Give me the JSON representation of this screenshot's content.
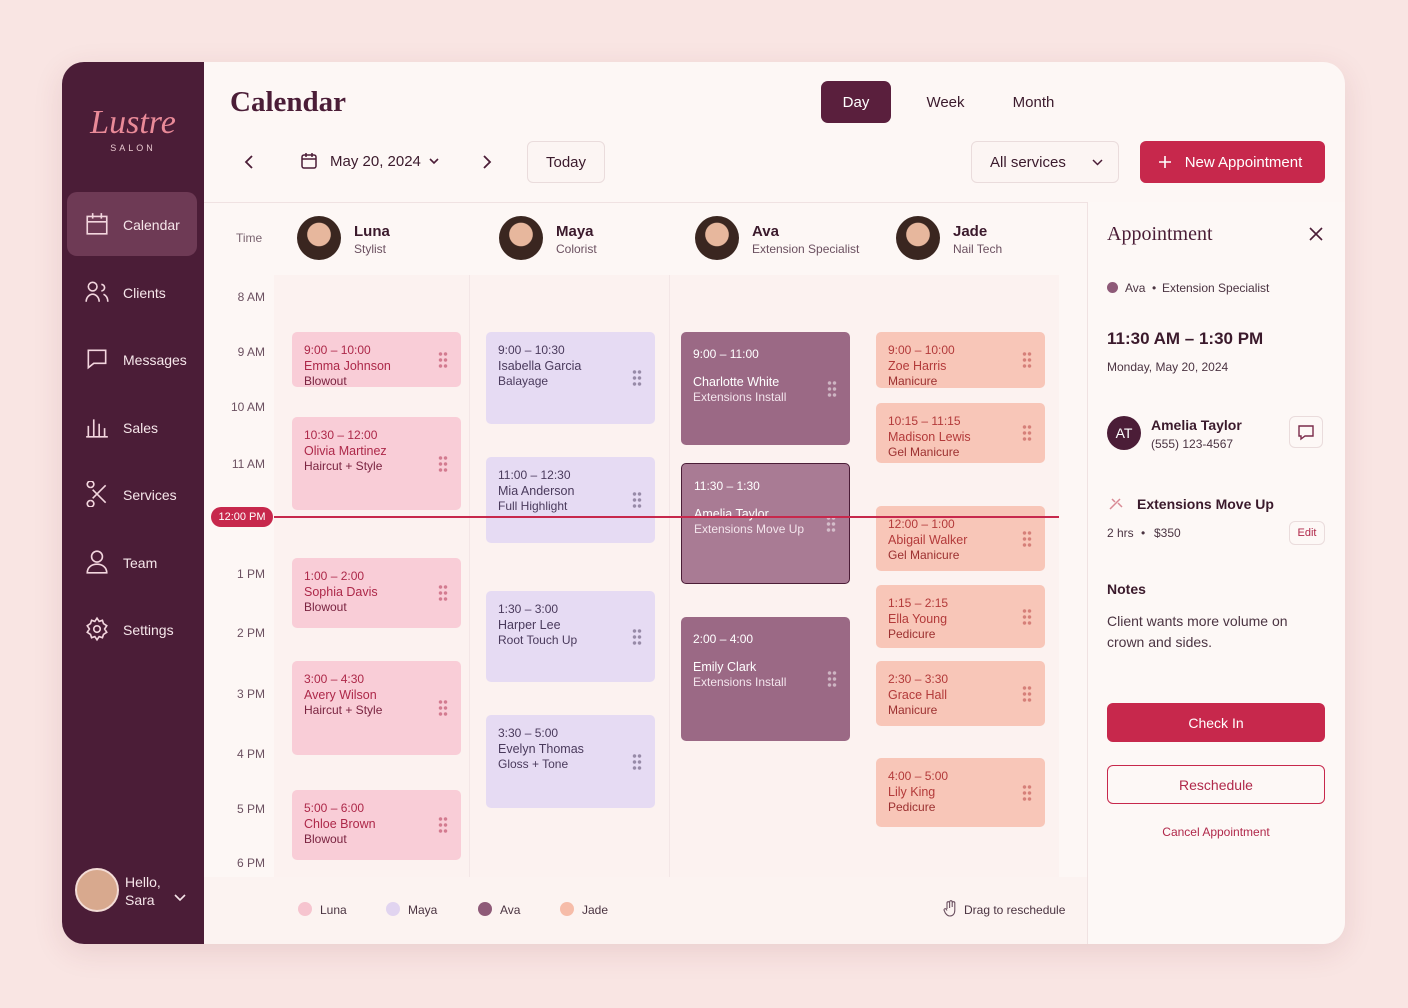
{
  "brand": {
    "name": "Lustre",
    "tagline": "SALON"
  },
  "nav": [
    "Calendar",
    "Clients",
    "Messages",
    "Sales",
    "Services",
    "Team",
    "Settings"
  ],
  "user": {
    "greeting": "Hello,",
    "name": "Sara"
  },
  "header": {
    "title": "Calendar",
    "views": [
      "Day",
      "Week",
      "Month"
    ],
    "date": "May 20, 2024",
    "today": "Today",
    "filter": "All services",
    "new_button": "New Appointment"
  },
  "schedule": {
    "time_label": "Time",
    "times": [
      "8 AM",
      "9 AM",
      "10 AM",
      "11 AM",
      "1 PM",
      "2 PM",
      "3 PM",
      "4 PM",
      "5 PM",
      "6 PM"
    ],
    "now": "12:00 PM",
    "staff": [
      {
        "name": "Luna",
        "role": "Stylist",
        "appointments": [
          {
            "time": "9:00 – 10:00",
            "client": "Emma Johnson",
            "service": "Blowout"
          },
          {
            "time": "10:30 – 12:00",
            "client": "Olivia Martinez",
            "service": "Haircut + Style"
          },
          {
            "time": "1:00 – 2:00",
            "client": "Sophia Davis",
            "service": "Blowout"
          },
          {
            "time": "3:00 – 4:30",
            "client": "Avery Wilson",
            "service": "Haircut + Style"
          },
          {
            "time": "5:00 – 6:00",
            "client": "Chloe Brown",
            "service": "Blowout"
          }
        ]
      },
      {
        "name": "Maya",
        "role": "Colorist",
        "appointments": [
          {
            "time": "9:00 – 10:30",
            "client": "Isabella Garcia",
            "service": "Balayage"
          },
          {
            "time": "11:00 – 12:30",
            "client": "Mia Anderson",
            "service": "Full Highlight"
          },
          {
            "time": "1:30 – 3:00",
            "client": "Harper Lee",
            "service": "Root Touch Up"
          },
          {
            "time": "3:30 – 5:00",
            "client": "Evelyn Thomas",
            "service": "Gloss + Tone"
          }
        ]
      },
      {
        "name": "Ava",
        "role": "Extension Specialist",
        "appointments": [
          {
            "time": "9:00 – 11:00",
            "client": "Charlotte White",
            "service": "Extensions Install"
          },
          {
            "time": "11:30 – 1:30",
            "client": "Amelia Taylor",
            "service": "Extensions Move Up"
          },
          {
            "time": "2:00 – 4:00",
            "client": "Emily Clark",
            "service": "Extensions Install"
          }
        ]
      },
      {
        "name": "Jade",
        "role": "Nail Tech",
        "appointments": [
          {
            "time": "9:00 – 10:00",
            "client": "Zoe Harris",
            "service": "Manicure"
          },
          {
            "time": "10:15 – 11:15",
            "client": "Madison Lewis",
            "service": "Gel Manicure"
          },
          {
            "time": "12:00 – 1:00",
            "client": "Abigail Walker",
            "service": "Gel Manicure"
          },
          {
            "time": "1:15 – 2:15",
            "client": "Ella Young",
            "service": "Pedicure"
          },
          {
            "time": "2:30 – 3:30",
            "client": "Grace Hall",
            "service": "Manicure"
          },
          {
            "time": "4:00 – 5:00",
            "client": "Lily King",
            "service": "Pedicure"
          }
        ]
      }
    ]
  },
  "legend": {
    "items": [
      "Luna",
      "Maya",
      "Ava",
      "Jade"
    ],
    "hint": "Drag to reschedule"
  },
  "panel": {
    "title": "Appointment",
    "staff": "Ava",
    "role": "Extension Specialist",
    "time": "11:30 AM – 1:30 PM",
    "date": "Monday, May 20, 2024",
    "client": {
      "initials": "AT",
      "name": "Amelia Taylor",
      "phone": "(555) 123-4567"
    },
    "service": "Extensions Move Up",
    "duration": "2 hrs",
    "price": "$350",
    "edit": "Edit",
    "notes_title": "Notes",
    "notes": "Client wants more volume on crown and sides.",
    "check_in": "Check In",
    "reschedule": "Reschedule",
    "cancel": "Cancel Appointment"
  }
}
